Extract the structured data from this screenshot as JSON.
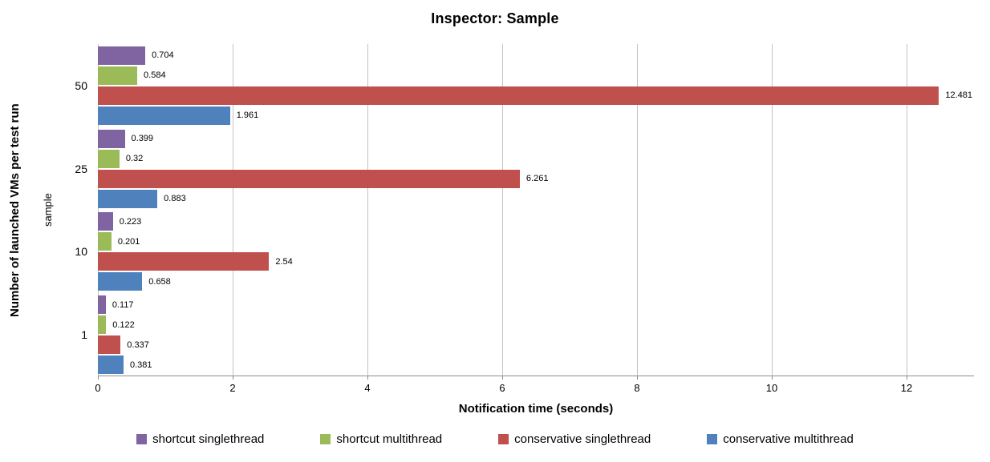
{
  "chart_data": {
    "type": "bar",
    "orientation": "horizontal",
    "title": "Inspector: Sample",
    "xlabel": "Notification time (seconds)",
    "ylabel": "Number of launched VMs per test run",
    "ylabel_inner": "sample",
    "categories": [
      "50",
      "25",
      "10",
      "1"
    ],
    "series": [
      {
        "name": "shortcut singlethread",
        "color": "#8064A2",
        "values": [
          0.704,
          0.399,
          0.223,
          0.117
        ],
        "labels": [
          "0.704",
          "0.399",
          "0.223",
          "0.117"
        ]
      },
      {
        "name": "shortcut multithread",
        "color": "#9BBB59",
        "values": [
          0.584,
          0.32,
          0.201,
          0.122
        ],
        "labels": [
          "0.584",
          "0.32",
          "0.201",
          "0.122"
        ]
      },
      {
        "name": "conservative singlethread",
        "color": "#C0504D",
        "values": [
          12.481,
          6.261,
          2.54,
          0.337
        ],
        "labels": [
          "12.481",
          "6.261",
          "2.54",
          "0.337"
        ]
      },
      {
        "name": "conservative multithread",
        "color": "#4F81BD",
        "values": [
          1.961,
          0.883,
          0.658,
          0.381
        ],
        "labels": [
          "1.961",
          "0.883",
          "0.658",
          "0.381"
        ]
      }
    ],
    "x_ticks": [
      "0",
      "2",
      "4",
      "6",
      "8",
      "10",
      "12"
    ],
    "xlim": [
      0,
      13
    ],
    "grid": "vertical-only",
    "legend_position": "bottom",
    "colors": {
      "gridline": "#c3c3c3",
      "axis_line": "#8c8c8c",
      "text": "#000000",
      "background": "#ffffff"
    }
  }
}
